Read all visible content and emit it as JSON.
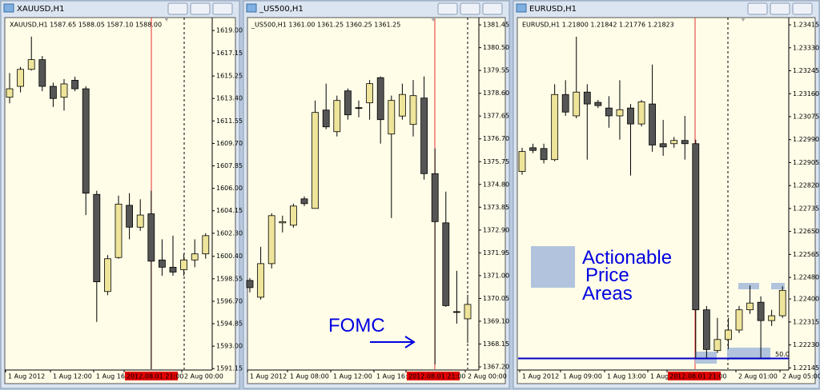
{
  "windows": [
    {
      "title": "XAUUSD,H1",
      "info": "XAUUSD,H1  1587.65 1588.05 1587.10 1588.00",
      "chart": {
        "type": "candlestick",
        "ylim": [
          1591.1,
          1619.8
        ],
        "yticks": [
          {
            "value": 1619.0,
            "label": "1619.00"
          },
          {
            "value": 1617.15,
            "label": "1617.15"
          },
          {
            "value": 1615.25,
            "label": "1615.25"
          },
          {
            "value": 1613.4,
            "label": "1613.40"
          },
          {
            "value": 1611.55,
            "label": "1611.55"
          },
          {
            "value": 1609.7,
            "label": "1609.70"
          },
          {
            "value": 1607.85,
            "label": "1607.85"
          },
          {
            "value": 1606.0,
            "label": "1606.00"
          },
          {
            "value": 1604.15,
            "label": "1604.15"
          },
          {
            "value": 1602.3,
            "label": "1602.30"
          },
          {
            "value": 1600.4,
            "label": "1600.40"
          },
          {
            "value": 1598.55,
            "label": "1598.55"
          },
          {
            "value": 1596.7,
            "label": "1596.70"
          },
          {
            "value": 1594.85,
            "label": "1594.85"
          },
          {
            "value": 1593.0,
            "label": "1593.00"
          },
          {
            "value": 1591.15,
            "label": "1591.15"
          }
        ],
        "xlabels": [
          "1 Aug 2012",
          "1 Aug 12:00",
          "1 Aug 16:",
          "2012.08.01 21:00",
          "2 Aug 00:00"
        ],
        "candles": [
          [
            1613.5,
            1615.5,
            1613.0,
            1614.2
          ],
          [
            1614.4,
            1616.0,
            1613.9,
            1615.8
          ],
          [
            1615.8,
            1618.5,
            1615.7,
            1616.6
          ],
          [
            1616.6,
            1616.9,
            1614.0,
            1614.4
          ],
          [
            1614.4,
            1614.7,
            1612.7,
            1613.4
          ],
          [
            1613.5,
            1615.0,
            1612.4,
            1614.6
          ],
          [
            1614.9,
            1615.2,
            1614.0,
            1614.2
          ],
          [
            1614.2,
            1614.4,
            1603.8,
            1605.6
          ],
          [
            1605.5,
            1605.8,
            1595.0,
            1598.3
          ],
          [
            1597.5,
            1600.5,
            1597.2,
            1600.2
          ],
          [
            1600.3,
            1605.4,
            1600.2,
            1604.7
          ],
          [
            1604.6,
            1605.6,
            1601.8,
            1602.8
          ],
          [
            1602.8,
            1605.1,
            1602.5,
            1603.8
          ],
          [
            1603.9,
            1605.8,
            1591.1,
            1600.0
          ],
          [
            1600.1,
            1601.8,
            1598.8,
            1599.5
          ],
          [
            1599.5,
            1602.1,
            1598.8,
            1599.1
          ],
          [
            1599.3,
            1600.6,
            1598.8,
            1600.1
          ],
          [
            1600.1,
            1601.8,
            1599.5,
            1600.6
          ],
          [
            1600.6,
            1602.3,
            1600.2,
            1602.1
          ]
        ]
      }
    },
    {
      "title": "_US500,H1",
      "info": "_US500,H1  1361.00 1361.25 1360.25 1361.25",
      "chart": {
        "type": "candlestick",
        "ylim": [
          1367.1,
          1381.62
        ],
        "yticks": [
          {
            "value": 1381.45,
            "label": "1381.45"
          },
          {
            "value": 1380.5,
            "label": "1380.50"
          },
          {
            "value": 1379.55,
            "label": "1379.55"
          },
          {
            "value": 1378.6,
            "label": "1378.60"
          },
          {
            "value": 1377.65,
            "label": "1377.65"
          },
          {
            "value": 1376.7,
            "label": "1376.70"
          },
          {
            "value": 1375.75,
            "label": "1375.75"
          },
          {
            "value": 1374.8,
            "label": "1374.80"
          },
          {
            "value": 1373.85,
            "label": "1373.85"
          },
          {
            "value": 1372.9,
            "label": "1372.90"
          },
          {
            "value": 1371.95,
            "label": "1371.95"
          },
          {
            "value": 1371.0,
            "label": "1371.00"
          },
          {
            "value": 1370.05,
            "label": "1370.05"
          },
          {
            "value": 1369.1,
            "label": "1369.10"
          },
          {
            "value": 1368.15,
            "label": "1368.15"
          },
          {
            "value": 1367.2,
            "label": "1367.20"
          }
        ],
        "xlabels": [
          "1 Aug 2012",
          "1 Aug 08:00",
          "1 Aug 12:00",
          "1 Aug 16:",
          "2012.08.01 21:00",
          "2 Aug 00:00"
        ],
        "annotation": "FOMC",
        "candles": [
          [
            1370.8,
            1370.9,
            1370.3,
            1370.5
          ],
          [
            1370.1,
            1372.2,
            1370.0,
            1371.5
          ],
          [
            1371.5,
            1373.6,
            1371.3,
            1373.5
          ],
          [
            1373.2,
            1373.5,
            1372.8,
            1373.25
          ],
          [
            1373.1,
            1374.0,
            1373.0,
            1373.9
          ],
          [
            1374.2,
            1374.3,
            1373.9,
            1374.0
          ],
          [
            1373.8,
            1378.3,
            1373.8,
            1377.8
          ],
          [
            1377.9,
            1379.0,
            1377.1,
            1377.2
          ],
          [
            1377.0,
            1378.5,
            1376.8,
            1378.3
          ],
          [
            1378.7,
            1378.8,
            1377.5,
            1377.7
          ],
          [
            1378.0,
            1378.3,
            1377.6,
            1378.0
          ],
          [
            1378.2,
            1379.15,
            1377.5,
            1379.0
          ],
          [
            1379.25,
            1379.3,
            1376.5,
            1377.5
          ],
          [
            1376.9,
            1378.5,
            1373.4,
            1378.3
          ],
          [
            1377.65,
            1379.0,
            1377.5,
            1378.55
          ],
          [
            1377.3,
            1379.15,
            1376.8,
            1378.5
          ],
          [
            1378.4,
            1379.3,
            1375.0,
            1375.25
          ],
          [
            1375.25,
            1376.3,
            1367.3,
            1373.25
          ],
          [
            1373.2,
            1374.5,
            1369.7,
            1369.75
          ],
          [
            1369.5,
            1371.2,
            1369.0,
            1369.5
          ],
          [
            1369.2,
            1370.2,
            1368.2,
            1369.8
          ]
        ]
      }
    },
    {
      "title": "EURUSD,H1",
      "info": "EURUSD,H1  1.21800 1.21842 1.21776 1.21823",
      "chart": {
        "type": "candlestick",
        "ylim": [
          1.2214,
          1.2343
        ],
        "yticks": [
          {
            "value": 1.23415,
            "label": "1.23415"
          },
          {
            "value": 1.2333,
            "label": "1.23330"
          },
          {
            "value": 1.23245,
            "label": "1.23245"
          },
          {
            "value": 1.2316,
            "label": "1.23160"
          },
          {
            "value": 1.23075,
            "label": "1.23075"
          },
          {
            "value": 1.2299,
            "label": "1.22990"
          },
          {
            "value": 1.22905,
            "label": "1.22905"
          },
          {
            "value": 1.2282,
            "label": "1.22820"
          },
          {
            "value": 1.22735,
            "label": "1.22735"
          },
          {
            "value": 1.2265,
            "label": "1.22650"
          },
          {
            "value": 1.22565,
            "label": "1.22565"
          },
          {
            "value": 1.2248,
            "label": "1.22480"
          },
          {
            "value": 1.224,
            "label": "1.22400"
          },
          {
            "value": 1.22315,
            "label": "1.22315"
          },
          {
            "value": 1.2223,
            "label": "1.22230"
          },
          {
            "value": 1.22145,
            "label": "1.22145"
          }
        ],
        "xlabels": [
          "1 Aug 2012",
          "1 Aug 09:00",
          "1 Aug 13:00",
          "1 Aug 17:",
          "2012.08.01 21:00",
          "2 Aug 01:00",
          "2 Aug 05:00"
        ],
        "level": {
          "value": 1.2218,
          "label": "50.0"
        },
        "annotation": [
          "Actionable",
          "Price",
          "Areas"
        ],
        "candles": [
          [
            1.22872,
            1.2296,
            1.2286,
            1.22946
          ],
          [
            1.2296,
            1.22975,
            1.2294,
            1.2295
          ],
          [
            1.22957,
            1.22975,
            1.22902,
            1.22916
          ],
          [
            1.22916,
            1.23195,
            1.2291,
            1.23157
          ],
          [
            1.23157,
            1.2321,
            1.23078,
            1.23092
          ],
          [
            1.23078,
            1.23371,
            1.23069,
            1.23166
          ],
          [
            1.23166,
            1.23195,
            1.22916,
            1.23122
          ],
          [
            1.23128,
            1.23137,
            1.23107,
            1.23116
          ],
          [
            1.23107,
            1.23151,
            1.23034,
            1.23078
          ],
          [
            1.23078,
            1.2321,
            1.2299,
            1.23101
          ],
          [
            1.23107,
            1.23122,
            1.22857,
            1.23048
          ],
          [
            1.23048,
            1.23137,
            1.23039,
            1.2313
          ],
          [
            1.23122,
            1.23268,
            1.22945,
            1.2297
          ],
          [
            1.22975,
            1.23063,
            1.2293,
            1.22963
          ],
          [
            1.22975,
            1.23,
            1.2296,
            1.22987
          ],
          [
            1.22987,
            1.23078,
            1.22916,
            1.22975
          ],
          [
            1.22975,
            1.2299,
            1.22183,
            1.2236
          ],
          [
            1.2236,
            1.22374,
            1.22183,
            1.22213
          ],
          [
            1.22209,
            1.2233,
            1.222,
            1.2225
          ],
          [
            1.2225,
            1.2233,
            1.22215,
            1.22285
          ],
          [
            1.22285,
            1.22374,
            1.22274,
            1.2236
          ],
          [
            1.2236,
            1.2245,
            1.22345,
            1.22385
          ],
          [
            1.22388,
            1.2241,
            1.22183,
            1.2232
          ],
          [
            1.2232,
            1.2236,
            1.223,
            1.22338
          ],
          [
            1.22338,
            1.22447,
            1.2233,
            1.22432
          ]
        ]
      }
    }
  ]
}
